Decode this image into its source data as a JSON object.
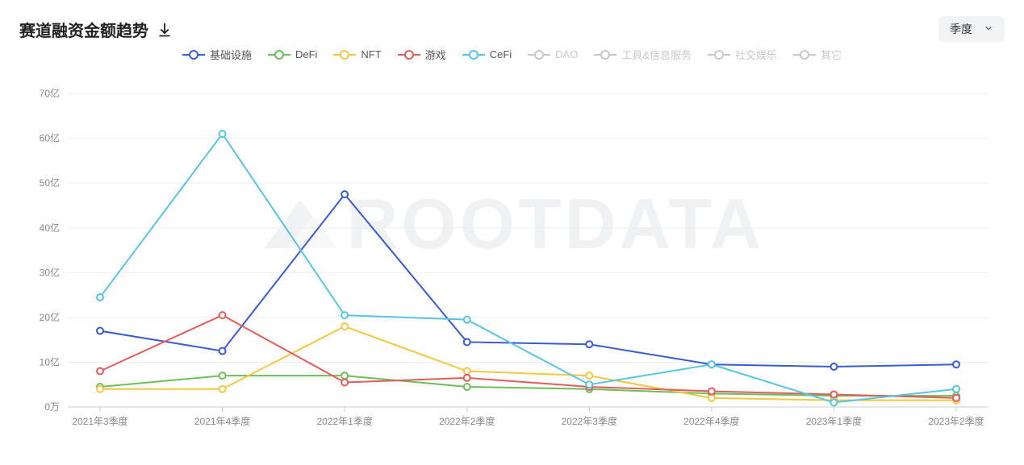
{
  "header": {
    "title": "赛道融资金额趋势",
    "download_icon_label": "download",
    "dropdown_label": "季度"
  },
  "chart": {
    "type": "line",
    "background_color": "#ffffff",
    "grid_color": "#eeeeee",
    "axis_color": "#cccccc",
    "label_color": "#888888",
    "label_fontsize": 12,
    "watermark_text": "ROOTDATA",
    "watermark_color": "#e9ecef",
    "marker_style": "circle",
    "marker_size": 4,
    "line_width": 2,
    "xlabels": [
      "2021年3季度",
      "2021年4季度",
      "2022年1季度",
      "2022年2季度",
      "2022年3季度",
      "2022年4季度",
      "2023年1季度",
      "2023年2季度"
    ],
    "yticks": [
      0,
      10,
      20,
      30,
      40,
      50,
      60,
      70
    ],
    "ytick_labels": [
      "0万",
      "10亿",
      "20亿",
      "30亿",
      "40亿",
      "50亿",
      "60亿",
      "70亿"
    ],
    "ylim": [
      0,
      72
    ],
    "series": [
      {
        "key": "infra",
        "label": "基础设施",
        "color": "#3a5bcc",
        "active": true,
        "values": [
          17.0,
          12.5,
          47.5,
          14.5,
          14.0,
          9.5,
          9.0,
          9.5
        ]
      },
      {
        "key": "defi",
        "label": "DeFi",
        "color": "#6bbf59",
        "active": true,
        "values": [
          4.5,
          7.0,
          7.0,
          4.5,
          4.0,
          3.0,
          2.5,
          2.5
        ]
      },
      {
        "key": "nft",
        "label": "NFT",
        "color": "#f2c744",
        "active": true,
        "values": [
          4.0,
          4.0,
          18.0,
          8.0,
          7.0,
          2.0,
          1.5,
          1.5
        ]
      },
      {
        "key": "game",
        "label": "游戏",
        "color": "#e45b5b",
        "active": true,
        "values": [
          8.0,
          20.5,
          5.5,
          6.5,
          4.5,
          3.5,
          2.8,
          2.0
        ]
      },
      {
        "key": "cefi",
        "label": "CeFi",
        "color": "#58c4e0",
        "active": true,
        "values": [
          24.5,
          61.0,
          20.5,
          19.5,
          5.0,
          9.5,
          1.0,
          4.0
        ]
      },
      {
        "key": "dao",
        "label": "DAO",
        "color": "#c8c8c8",
        "active": false,
        "values": null
      },
      {
        "key": "tools",
        "label": "工具&信息服务",
        "color": "#c8c8c8",
        "active": false,
        "values": null
      },
      {
        "key": "social",
        "label": "社交娱乐",
        "color": "#c8c8c8",
        "active": false,
        "values": null
      },
      {
        "key": "other",
        "label": "其它",
        "color": "#c8c8c8",
        "active": false,
        "values": null
      }
    ]
  }
}
